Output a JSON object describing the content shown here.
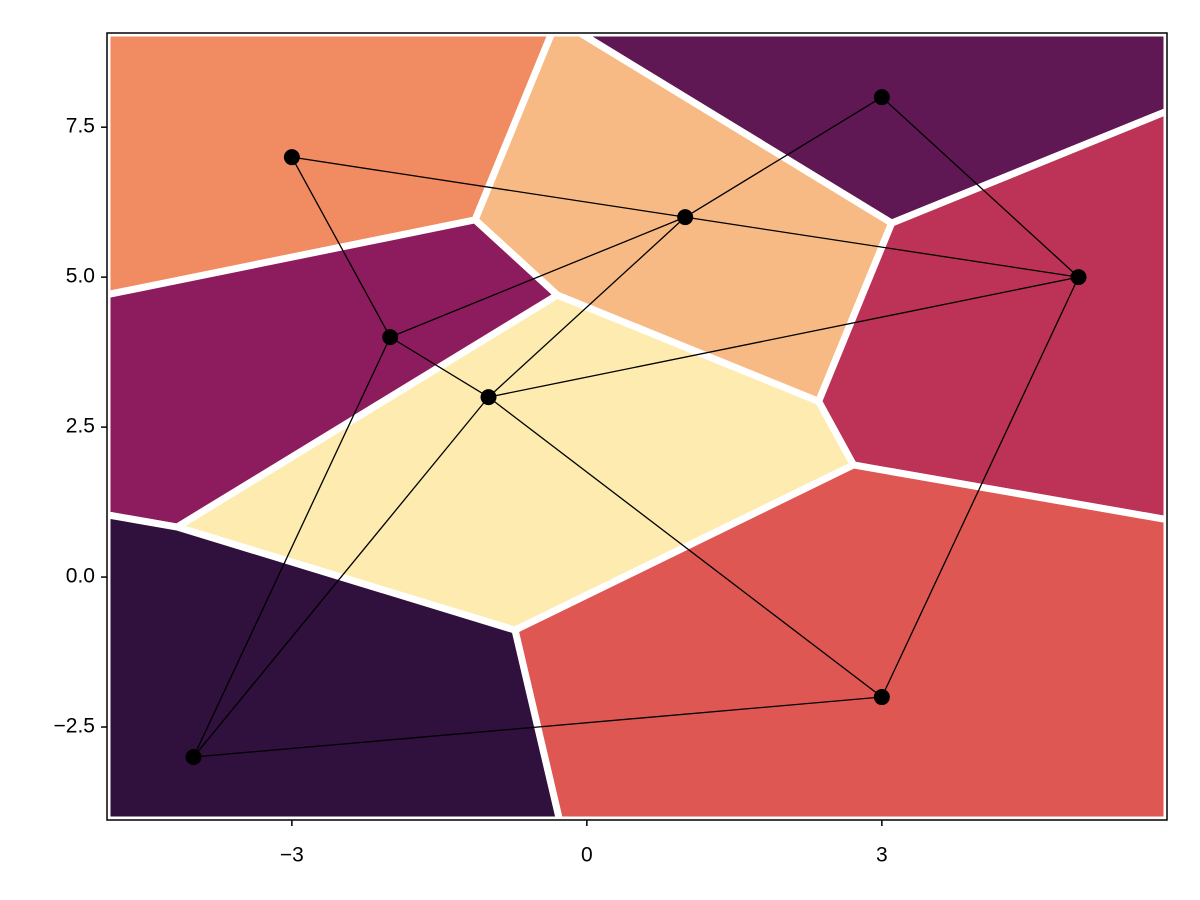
{
  "chart_data": {
    "type": "voronoi",
    "x": [
      -3,
      3,
      1,
      5,
      -2,
      -1,
      3,
      -4
    ],
    "y": [
      7,
      8,
      6,
      5,
      4,
      3,
      -2,
      -3
    ],
    "cell_colors": [
      "#f18b62",
      "#5f1854",
      "#f8ba84",
      "#bc3357",
      "#8d1c5e",
      "#fdebb0",
      "#de5753",
      "#30103c"
    ],
    "point_color": "#000000",
    "xlim": [
      -4.88,
      5.9
    ],
    "ylim": [
      -4.05,
      9.07
    ],
    "xticks": [
      {
        "value": -3,
        "label": "−3"
      },
      0,
      3
    ],
    "yticks": [
      {
        "value": -2.5,
        "label": "−2.5"
      },
      {
        "value": 0,
        "label": "0.0"
      },
      2.5,
      {
        "value": 5,
        "label": "5.0"
      },
      {
        "value": 7.5,
        "label": "7.5"
      }
    ]
  }
}
